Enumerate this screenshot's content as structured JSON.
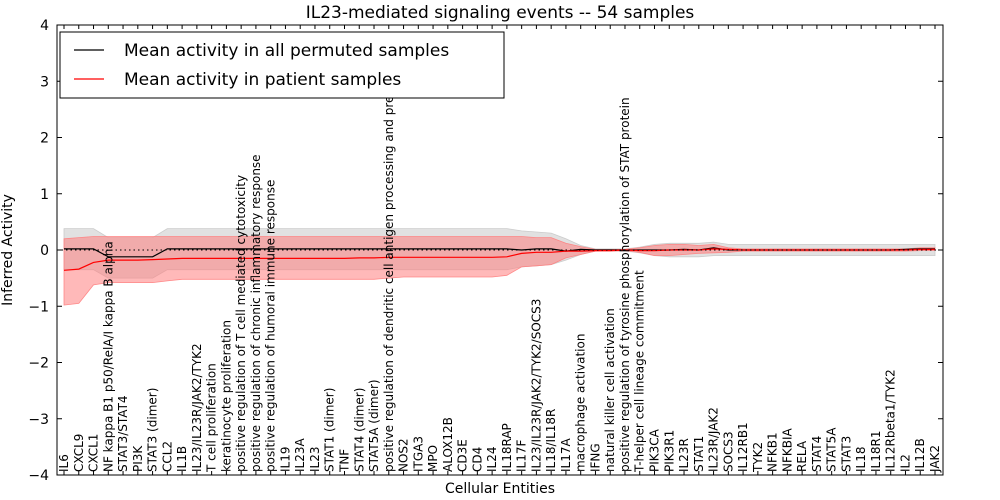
{
  "chart_data": {
    "type": "line",
    "title": "IL23-mediated signaling events -- 54 samples",
    "xlabel": "Cellular Entities",
    "ylabel": "Inferred Activity",
    "ylim": [
      -4,
      4
    ],
    "yticks": [
      -4,
      -3,
      -2,
      -1,
      0,
      1,
      2,
      3,
      4
    ],
    "legend": {
      "placement": "top-left",
      "entries": [
        {
          "label": "Mean activity in all permuted samples",
          "color": "#000000"
        },
        {
          "label": "Mean activity in patient samples",
          "color": "#ff0000"
        }
      ]
    },
    "colors": {
      "permuted_line": "#000000",
      "permuted_band": "#c8c8c8",
      "patient_line": "#ff0000",
      "patient_band": "#ff8080"
    },
    "categories": [
      "IL6",
      "CXCL9",
      "CXCL1",
      "NF kappa B1 p50/RelA/I kappa B alpha",
      "STAT3/STAT4",
      "PI3K",
      "STAT3 (dimer)",
      "CCL2",
      "IL1B",
      "IL23/IL23R/JAK2/TYK2",
      "T cell proliferation",
      "keratinocyte proliferation",
      "positive regulation of T cell mediated cytotoxicity",
      "positive regulation of chronic inflammatory response",
      "positive regulation of humoral immune response",
      "IL19",
      "IL23A",
      "IL23",
      "STAT1 (dimer)",
      "TNF",
      "STAT4 (dimer)",
      "STAT5A (dimer)",
      "positive regulation of dendritic cell antigen processing and presentation",
      "NOS2",
      "ITGA3",
      "MPO",
      "ALOX12B",
      "CD3E",
      "CD4",
      "IL24",
      "IL18RAP",
      "IL17F",
      "IL23/IL23R/JAK2/TYK2/SOCS3",
      "IL18/IL18R",
      "IL17A",
      "macrophage activation",
      "IFNG",
      "natural killer cell activation",
      "positive regulation of tyrosine phosphorylation of STAT protein",
      "T-helper cell lineage commitment",
      "PIK3CA",
      "PIK3R1",
      "IL23R",
      "STAT1",
      "IL23R/JAK2",
      "SOCS3",
      "IL12RB1",
      "TYK2",
      "NFKB1",
      "NFKBIA",
      "RELA",
      "STAT4",
      "STAT5A",
      "STAT3",
      "IL18",
      "IL18R1",
      "IL12Rbeta1/TYK2",
      "IL2",
      "IL12B",
      "JAK2"
    ],
    "series": [
      {
        "name": "Mean activity in all permuted samples",
        "values": [
          0.02,
          0.02,
          0.02,
          -0.12,
          -0.12,
          -0.12,
          -0.12,
          0.02,
          0.02,
          0.02,
          0.02,
          0.02,
          0.02,
          0.02,
          0.02,
          0.02,
          0.02,
          0.02,
          0.02,
          0.02,
          0.02,
          0.02,
          0.02,
          0.02,
          0.02,
          0.02,
          0.02,
          0.02,
          0.02,
          0.02,
          0.02,
          0.0,
          0.02,
          0.02,
          -0.02,
          0.01,
          0.0,
          0.0,
          0.0,
          0.0,
          0.0,
          0.0,
          0.01,
          0.0,
          0.04,
          0.0,
          0.0,
          0.0,
          0.0,
          0.0,
          0.0,
          0.0,
          0.0,
          0.0,
          0.0,
          0.0,
          0.0,
          0.01,
          0.02,
          0.02
        ],
        "band_upper": [
          0.38,
          0.38,
          0.38,
          0.22,
          0.22,
          0.22,
          0.22,
          0.38,
          0.38,
          0.38,
          0.38,
          0.38,
          0.38,
          0.38,
          0.38,
          0.38,
          0.38,
          0.38,
          0.38,
          0.38,
          0.38,
          0.38,
          0.38,
          0.38,
          0.38,
          0.38,
          0.38,
          0.38,
          0.38,
          0.38,
          0.38,
          0.34,
          0.32,
          0.3,
          0.2,
          0.08,
          0.02,
          0.02,
          0.02,
          0.05,
          0.1,
          0.12,
          0.12,
          0.12,
          0.14,
          0.1,
          0.1,
          0.1,
          0.1,
          0.1,
          0.1,
          0.1,
          0.1,
          0.1,
          0.1,
          0.1,
          0.1,
          0.1,
          0.1,
          0.1
        ],
        "band_lower": [
          -0.35,
          -0.35,
          -0.35,
          -0.5,
          -0.5,
          -0.5,
          -0.5,
          -0.35,
          -0.35,
          -0.35,
          -0.35,
          -0.35,
          -0.35,
          -0.35,
          -0.35,
          -0.35,
          -0.35,
          -0.35,
          -0.35,
          -0.35,
          -0.35,
          -0.35,
          -0.35,
          -0.35,
          -0.35,
          -0.35,
          -0.35,
          -0.35,
          -0.35,
          -0.35,
          -0.35,
          -0.3,
          -0.28,
          -0.26,
          -0.18,
          -0.08,
          -0.02,
          -0.02,
          -0.02,
          -0.05,
          -0.1,
          -0.12,
          -0.12,
          -0.12,
          -0.1,
          -0.1,
          -0.1,
          -0.1,
          -0.1,
          -0.1,
          -0.1,
          -0.1,
          -0.1,
          -0.1,
          -0.1,
          -0.1,
          -0.1,
          -0.1,
          -0.1,
          -0.1
        ]
      },
      {
        "name": "Mean activity in patient samples",
        "values": [
          -0.36,
          -0.34,
          -0.22,
          -0.18,
          -0.18,
          -0.18,
          -0.17,
          -0.16,
          -0.15,
          -0.15,
          -0.15,
          -0.15,
          -0.15,
          -0.15,
          -0.15,
          -0.15,
          -0.15,
          -0.15,
          -0.15,
          -0.15,
          -0.14,
          -0.14,
          -0.13,
          -0.13,
          -0.13,
          -0.13,
          -0.13,
          -0.13,
          -0.13,
          -0.13,
          -0.12,
          -0.06,
          -0.04,
          -0.04,
          -0.02,
          -0.02,
          -0.01,
          -0.01,
          0.0,
          -0.01,
          -0.01,
          0.0,
          0.0,
          0.0,
          0.02,
          0.01,
          0.0,
          0.0,
          0.0,
          0.0,
          0.0,
          0.0,
          0.0,
          0.0,
          0.0,
          0.0,
          0.0,
          0.0,
          0.01,
          0.01
        ],
        "band_upper": [
          0.2,
          0.22,
          0.24,
          0.24,
          0.24,
          0.24,
          0.24,
          0.24,
          0.24,
          0.24,
          0.24,
          0.24,
          0.24,
          0.24,
          0.24,
          0.24,
          0.24,
          0.24,
          0.24,
          0.24,
          0.24,
          0.24,
          0.24,
          0.24,
          0.24,
          0.24,
          0.24,
          0.24,
          0.24,
          0.24,
          0.24,
          0.24,
          0.22,
          0.22,
          0.12,
          0.06,
          0.01,
          0.01,
          0.01,
          0.04,
          0.08,
          0.1,
          0.1,
          0.08,
          0.1,
          0.04,
          0.02,
          0.02,
          0.02,
          0.02,
          0.02,
          0.02,
          0.02,
          0.02,
          0.02,
          0.02,
          0.02,
          0.02,
          0.04,
          0.04
        ],
        "band_lower": [
          -0.98,
          -0.95,
          -0.62,
          -0.58,
          -0.58,
          -0.58,
          -0.58,
          -0.55,
          -0.52,
          -0.52,
          -0.52,
          -0.52,
          -0.52,
          -0.52,
          -0.52,
          -0.52,
          -0.52,
          -0.52,
          -0.52,
          -0.52,
          -0.52,
          -0.52,
          -0.5,
          -0.48,
          -0.48,
          -0.48,
          -0.48,
          -0.48,
          -0.48,
          -0.48,
          -0.45,
          -0.3,
          -0.28,
          -0.26,
          -0.14,
          -0.08,
          -0.02,
          -0.02,
          -0.01,
          -0.04,
          -0.1,
          -0.1,
          -0.08,
          -0.06,
          -0.05,
          -0.04,
          -0.02,
          -0.02,
          -0.02,
          -0.02,
          -0.02,
          -0.02,
          -0.02,
          -0.02,
          -0.02,
          -0.02,
          -0.02,
          -0.02,
          -0.01,
          -0.01
        ]
      }
    ]
  }
}
